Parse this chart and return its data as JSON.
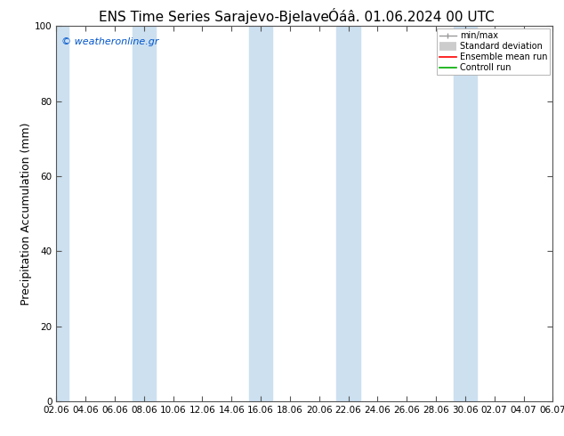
{
  "title": "ENS Time Series Sarajevo-Bjelave",
  "title2": "Óáâ. 01.06.2024 00 UTC",
  "ylabel": "Precipitation Accumulation (mm)",
  "watermark": "© weatheronline.gr",
  "ylim": [
    0,
    100
  ],
  "yticks": [
    0,
    20,
    40,
    60,
    80,
    100
  ],
  "xtick_labels": [
    "02.06",
    "04.06",
    "06.06",
    "08.06",
    "10.06",
    "12.06",
    "14.06",
    "16.06",
    "18.06",
    "20.06",
    "22.06",
    "24.06",
    "26.06",
    "28.06",
    "30.06",
    "02.07",
    "04.07",
    "06.07"
  ],
  "background_color": "#ffffff",
  "band_color": "#cce0f0",
  "band_x_indices": [
    0,
    3,
    7,
    10,
    14
  ],
  "legend_entries": [
    "min/max",
    "Standard deviation",
    "Ensemble mean run",
    "Controll run"
  ],
  "legend_colors_line": [
    "#999999",
    "#cccccc",
    "#ff0000",
    "#00aa00"
  ],
  "title_fontsize": 11,
  "ylabel_fontsize": 9,
  "tick_fontsize": 7.5,
  "watermark_color": "#0055cc"
}
